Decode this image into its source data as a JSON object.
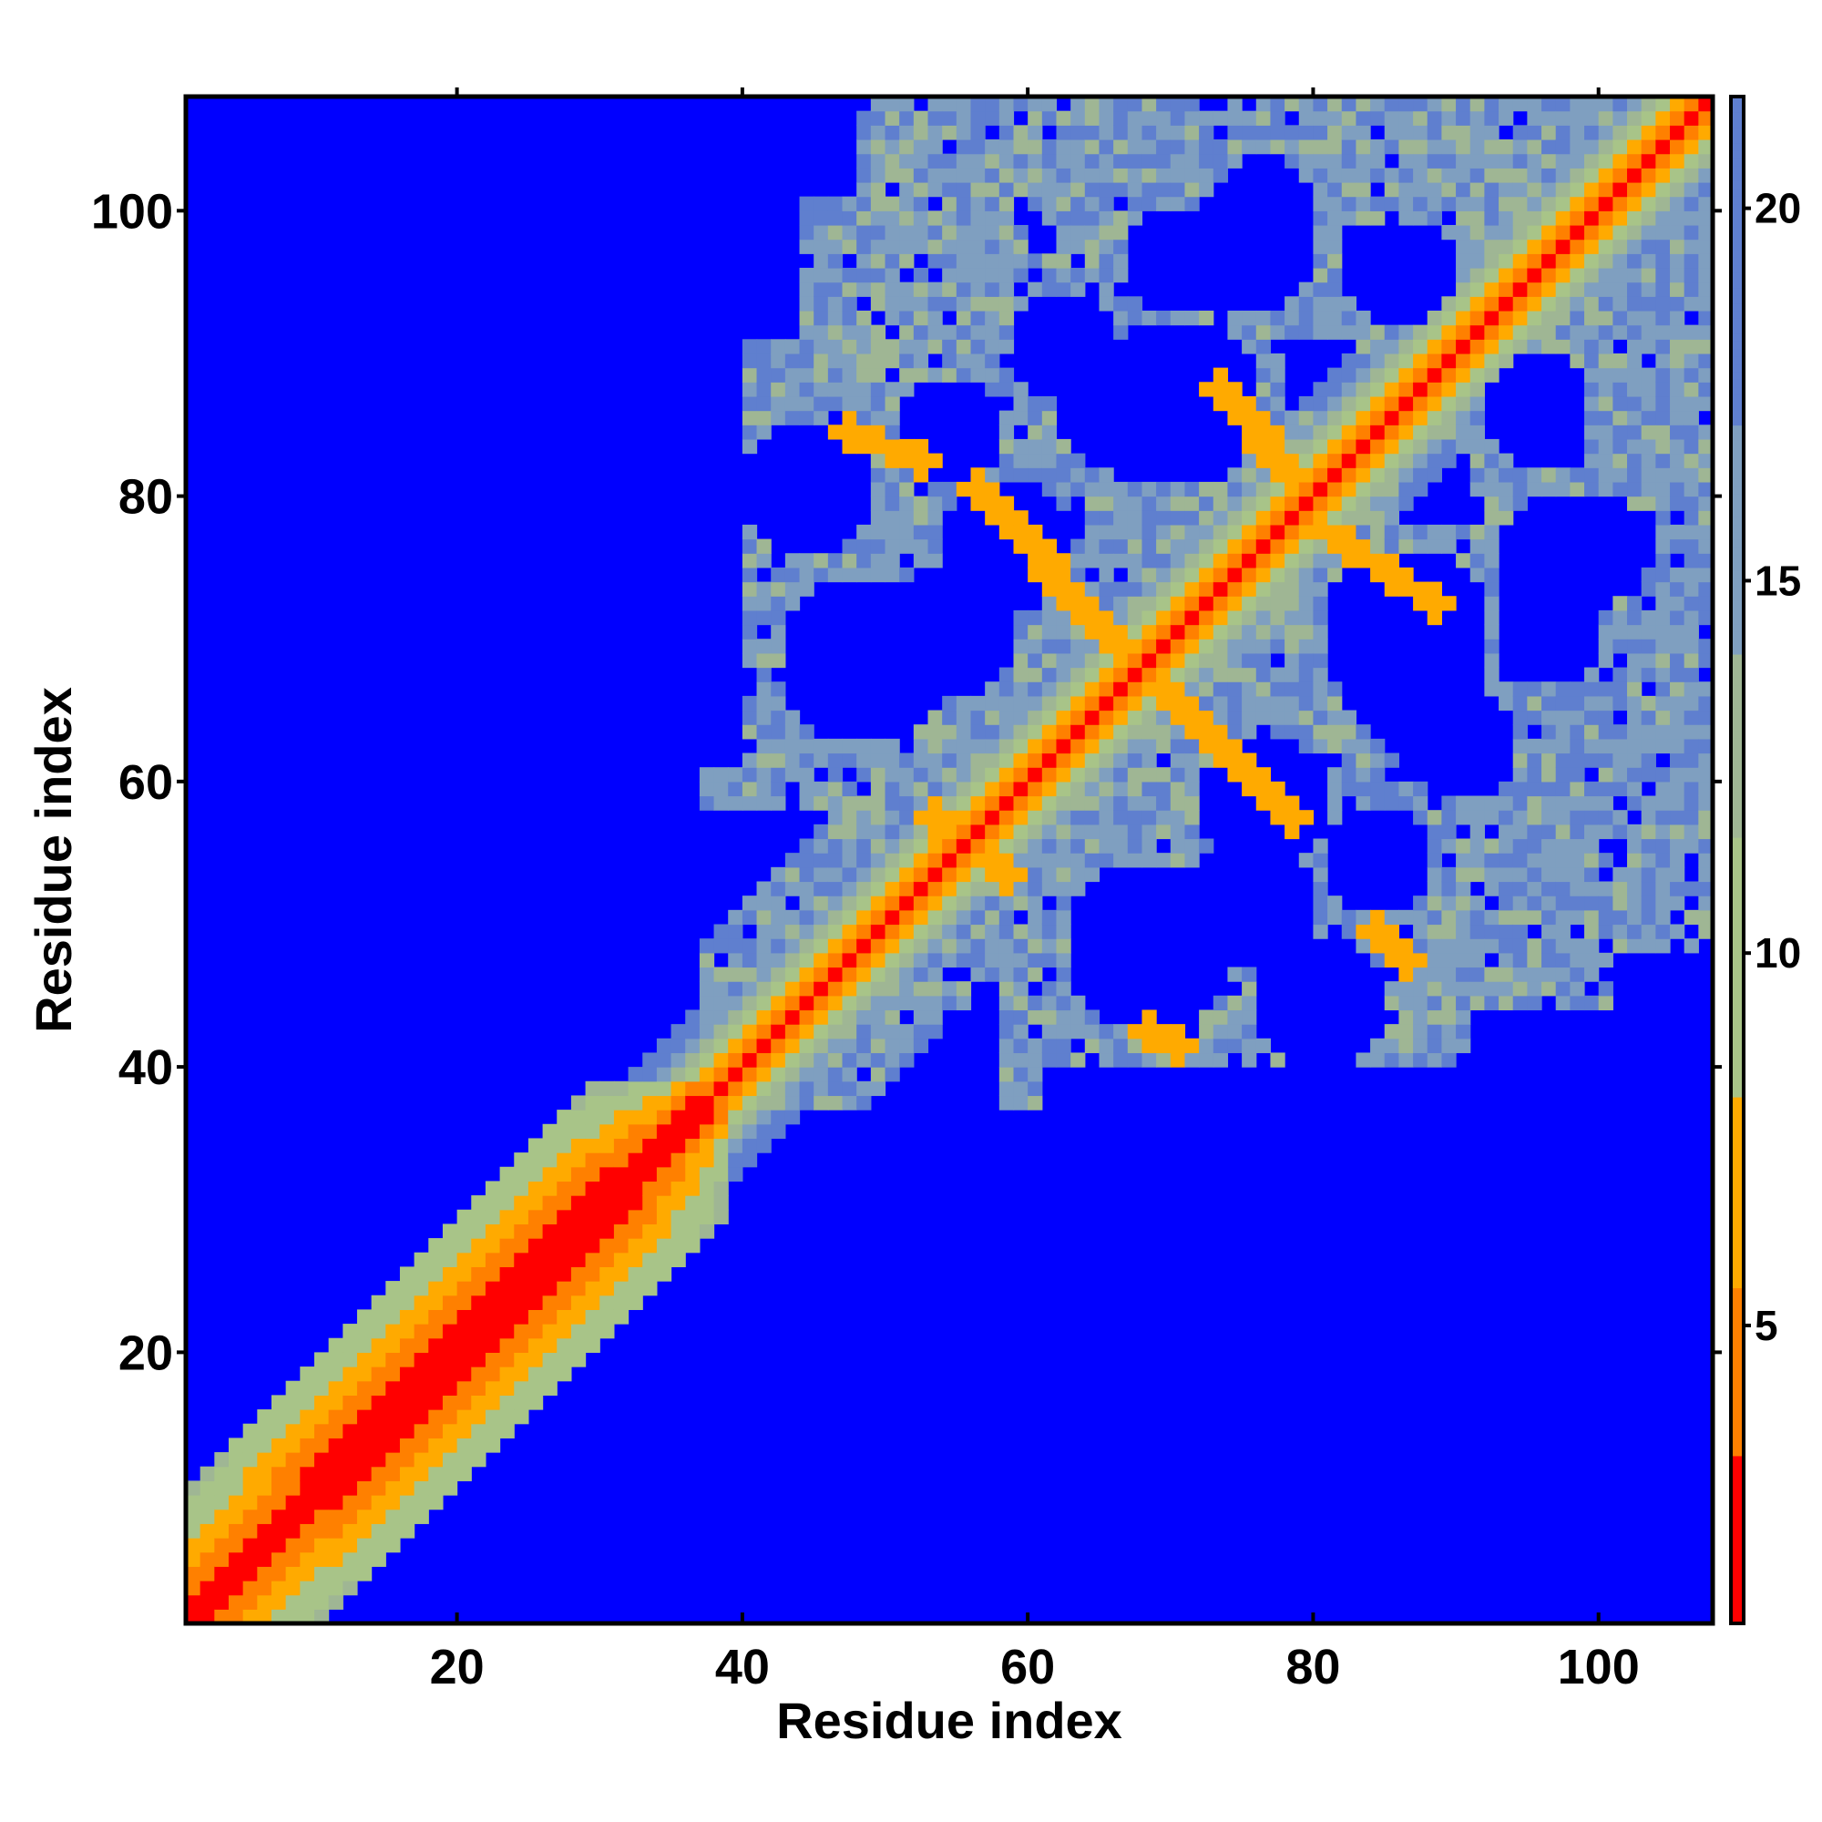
{
  "chart_data": {
    "type": "heatmap",
    "title": "",
    "xlabel": "Residue index",
    "ylabel": "Residue index",
    "n_residues": 107,
    "xlim": [
      1,
      107
    ],
    "ylim": [
      1,
      107
    ],
    "x_ticks": [
      20,
      40,
      60,
      80,
      100
    ],
    "y_ticks": [
      20,
      40,
      60,
      80,
      100
    ],
    "colorbar": {
      "ticks": [
        5,
        10,
        15,
        20
      ],
      "range": [
        1,
        21.5
      ],
      "colors": {
        "near": "#ff0000",
        "mid_near": "#ff8000",
        "mid": "#ffaa00",
        "green": "#a8c488",
        "gray_blue": "#7f9fc0",
        "blue_gray": "#5f7fcf",
        "far": "#0000ff"
      }
    },
    "features": {
      "diagonal_contact": "residue i vs i (distance ~0)",
      "helix_band_1": [
        1,
        36
      ],
      "domain_2": [
        38,
        107
      ],
      "cross_contacts": [
        {
          "from": [
            56,
            80
          ],
          "to": [
            66,
            70
          ],
          "description": "antiparallel contacts"
        },
        {
          "from": [
            71,
            64
          ],
          "to": [
            78,
            56
          ],
          "description": "antiparallel contacts"
        },
        {
          "from": [
            79,
            78
          ],
          "to": [
            88,
            72
          ],
          "description": "antiparallel contacts"
        },
        {
          "from": [
            73,
            87
          ],
          "to": [
            79,
            80
          ],
          "description": "antiparallel contacts"
        }
      ]
    }
  }
}
